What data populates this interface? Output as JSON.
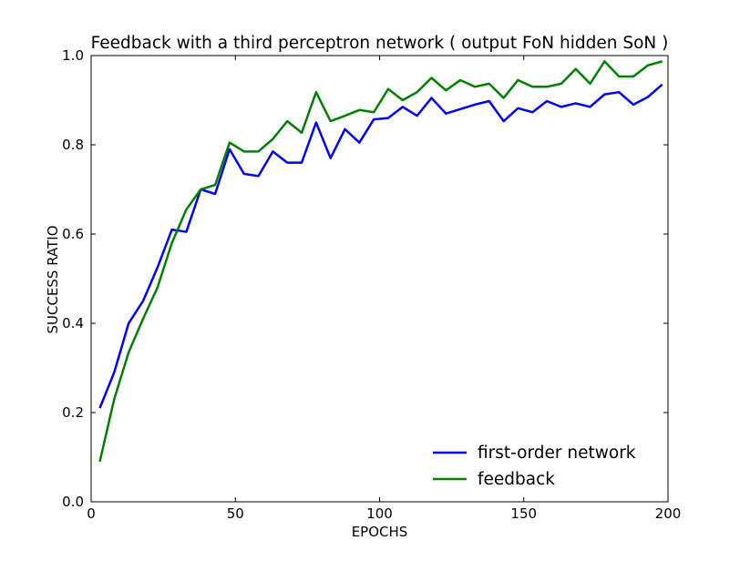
{
  "chart_data": {
    "type": "line",
    "title": "Feedback with a third perceptron network ( output FoN hidden SoN )",
    "xlabel": "EPOCHS",
    "ylabel": "SUCCESS RATIO",
    "xlim": [
      0,
      200
    ],
    "ylim": [
      0.0,
      1.0
    ],
    "x_ticks": [
      0,
      50,
      100,
      150,
      200
    ],
    "y_ticks": [
      0.0,
      0.2,
      0.4,
      0.6,
      0.8,
      1.0
    ],
    "x_tick_labels": [
      "0",
      "50",
      "100",
      "150",
      "200"
    ],
    "y_tick_labels": [
      "0.0",
      "0.2",
      "0.4",
      "0.6",
      "0.8",
      "1.0"
    ],
    "grid": false,
    "legend_position": "lower-right",
    "x": [
      3,
      8,
      13,
      18,
      23,
      28,
      33,
      38,
      43,
      48,
      53,
      58,
      63,
      68,
      73,
      78,
      83,
      88,
      93,
      98,
      103,
      108,
      113,
      118,
      123,
      128,
      133,
      138,
      143,
      148,
      153,
      158,
      163,
      168,
      173,
      178,
      183,
      188,
      193,
      198
    ],
    "series": [
      {
        "name": "first-order network",
        "color": "#0000ff",
        "values": [
          0.21,
          0.29,
          0.4,
          0.45,
          0.525,
          0.61,
          0.605,
          0.7,
          0.69,
          0.79,
          0.735,
          0.73,
          0.785,
          0.76,
          0.76,
          0.85,
          0.77,
          0.835,
          0.805,
          0.857,
          0.86,
          0.885,
          0.865,
          0.905,
          0.87,
          0.88,
          0.89,
          0.898,
          0.853,
          0.882,
          0.873,
          0.898,
          0.885,
          0.893,
          0.885,
          0.913,
          0.918,
          0.89,
          0.907,
          0.935
        ]
      },
      {
        "name": "feedback",
        "color": "#008000",
        "values": [
          0.09,
          0.23,
          0.335,
          0.41,
          0.48,
          0.58,
          0.655,
          0.7,
          0.71,
          0.805,
          0.785,
          0.785,
          0.813,
          0.853,
          0.827,
          0.918,
          0.853,
          0.865,
          0.878,
          0.873,
          0.925,
          0.9,
          0.918,
          0.95,
          0.922,
          0.945,
          0.93,
          0.937,
          0.905,
          0.945,
          0.93,
          0.93,
          0.937,
          0.97,
          0.937,
          0.987,
          0.953,
          0.953,
          0.978,
          0.987
        ]
      }
    ]
  }
}
